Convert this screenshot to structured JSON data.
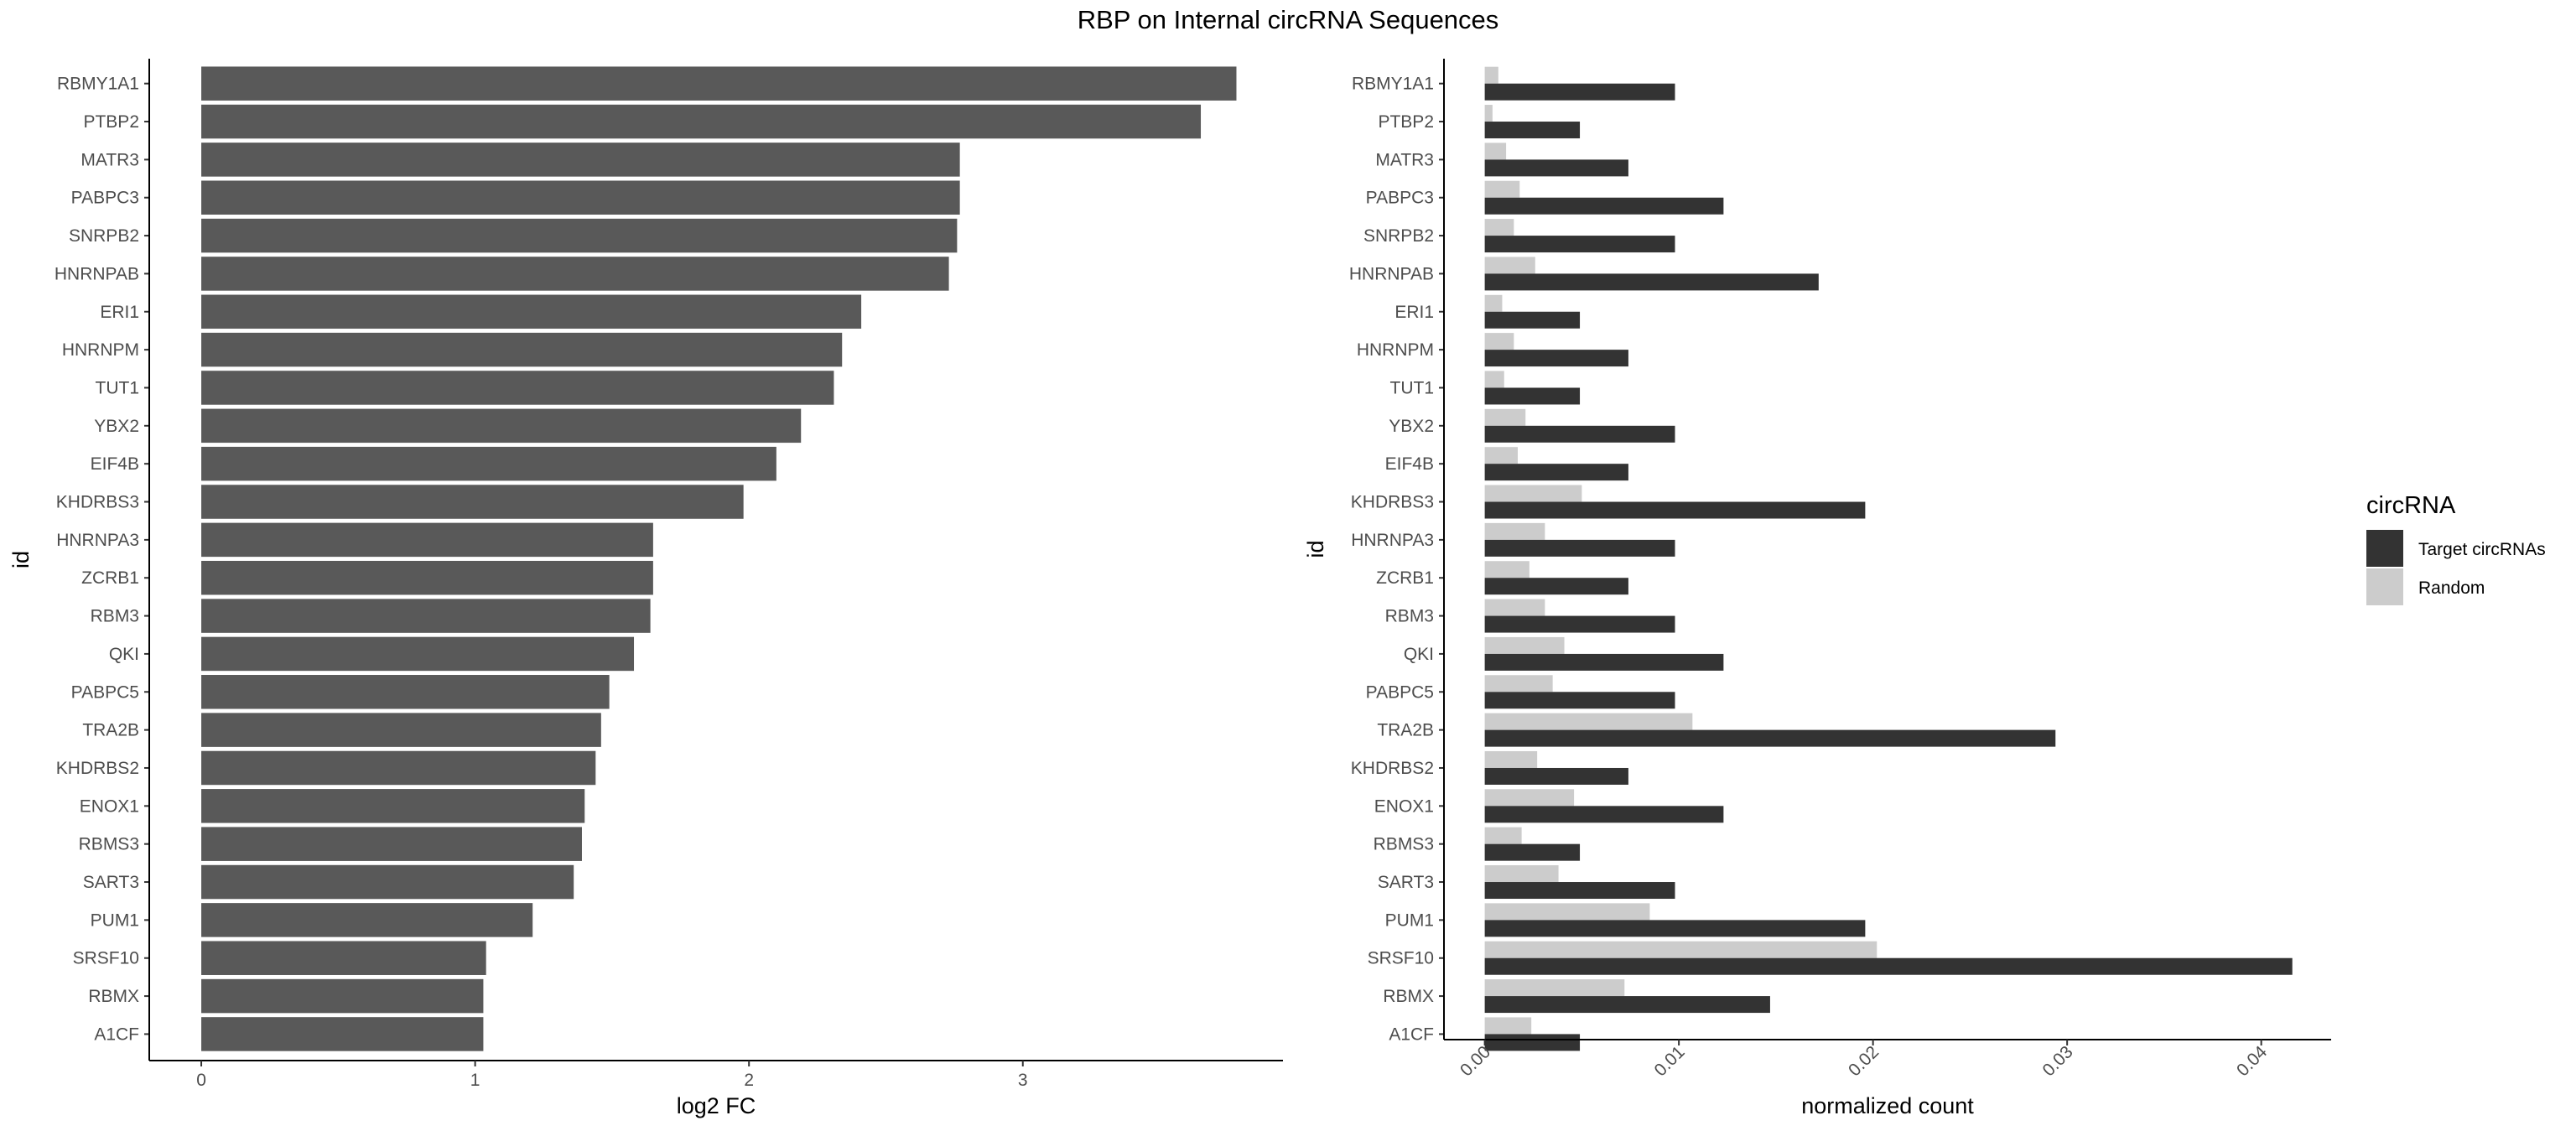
{
  "title": "RBP on Internal circRNA Sequences",
  "chart_data": [
    {
      "type": "bar",
      "orientation": "horizontal",
      "xlabel": "log2 FC",
      "ylabel": "id",
      "xlim": [
        -0.19,
        3.95
      ],
      "xticks": [
        "0",
        "1",
        "2",
        "3"
      ],
      "categories": [
        "RBMY1A1",
        "PTBP2",
        "MATR3",
        "PABPC3",
        "SNRPB2",
        "HNRNPAB",
        "ERI1",
        "HNRNPM",
        "TUT1",
        "YBX2",
        "EIF4B",
        "KHDRBS3",
        "HNRNPA3",
        "ZCRB1",
        "RBM3",
        "QKI",
        "PABPC5",
        "TRA2B",
        "KHDRBS2",
        "ENOX1",
        "RBMS3",
        "SART3",
        "PUM1",
        "SRSF10",
        "RBMX",
        "A1CF"
      ],
      "values": [
        3.78,
        3.65,
        2.77,
        2.77,
        2.76,
        2.73,
        2.41,
        2.34,
        2.31,
        2.19,
        2.1,
        1.98,
        1.65,
        1.65,
        1.64,
        1.58,
        1.49,
        1.46,
        1.44,
        1.4,
        1.39,
        1.36,
        1.21,
        1.04,
        1.03,
        1.03
      ],
      "bar_color": "#595959",
      "grid": false
    },
    {
      "type": "bar",
      "orientation": "horizontal",
      "grouped": true,
      "xlabel": "normalized count",
      "ylabel": "id",
      "xlim": [
        -0.0021,
        0.0436
      ],
      "xticks": [
        "0.00",
        "0.01",
        "0.02",
        "0.03",
        "0.04"
      ],
      "xtick_rotation": -45,
      "categories": [
        "RBMY1A1",
        "PTBP2",
        "MATR3",
        "PABPC3",
        "SNRPB2",
        "HNRNPAB",
        "ERI1",
        "HNRNPM",
        "TUT1",
        "YBX2",
        "EIF4B",
        "KHDRBS3",
        "HNRNPA3",
        "ZCRB1",
        "RBM3",
        "QKI",
        "PABPC5",
        "TRA2B",
        "KHDRBS2",
        "ENOX1",
        "RBMS3",
        "SART3",
        "PUM1",
        "SRSF10",
        "RBMX",
        "A1CF"
      ],
      "series": [
        {
          "name": "Random",
          "color": "#cccccc",
          "values": [
            0.0007,
            0.0004,
            0.0011,
            0.0018,
            0.0015,
            0.0026,
            0.0009,
            0.0015,
            0.001,
            0.0021,
            0.0017,
            0.005,
            0.0031,
            0.0023,
            0.0031,
            0.0041,
            0.0035,
            0.0107,
            0.0027,
            0.0046,
            0.0019,
            0.0038,
            0.0085,
            0.0202,
            0.0072,
            0.0024
          ]
        },
        {
          "name": "Target circRNAs",
          "color": "#333333",
          "values": [
            0.0098,
            0.0049,
            0.0074,
            0.0123,
            0.0098,
            0.0172,
            0.0049,
            0.0074,
            0.0049,
            0.0098,
            0.0074,
            0.0196,
            0.0098,
            0.0074,
            0.0098,
            0.0123,
            0.0098,
            0.0294,
            0.0074,
            0.0123,
            0.0049,
            0.0098,
            0.0196,
            0.0416,
            0.0147,
            0.0049
          ]
        }
      ],
      "legend": {
        "title": "circRNA",
        "placement": "right",
        "entries": [
          {
            "label": "Target circRNAs",
            "color": "#333333"
          },
          {
            "label": "Random",
            "color": "#cccccc"
          }
        ]
      },
      "grid": false
    }
  ]
}
